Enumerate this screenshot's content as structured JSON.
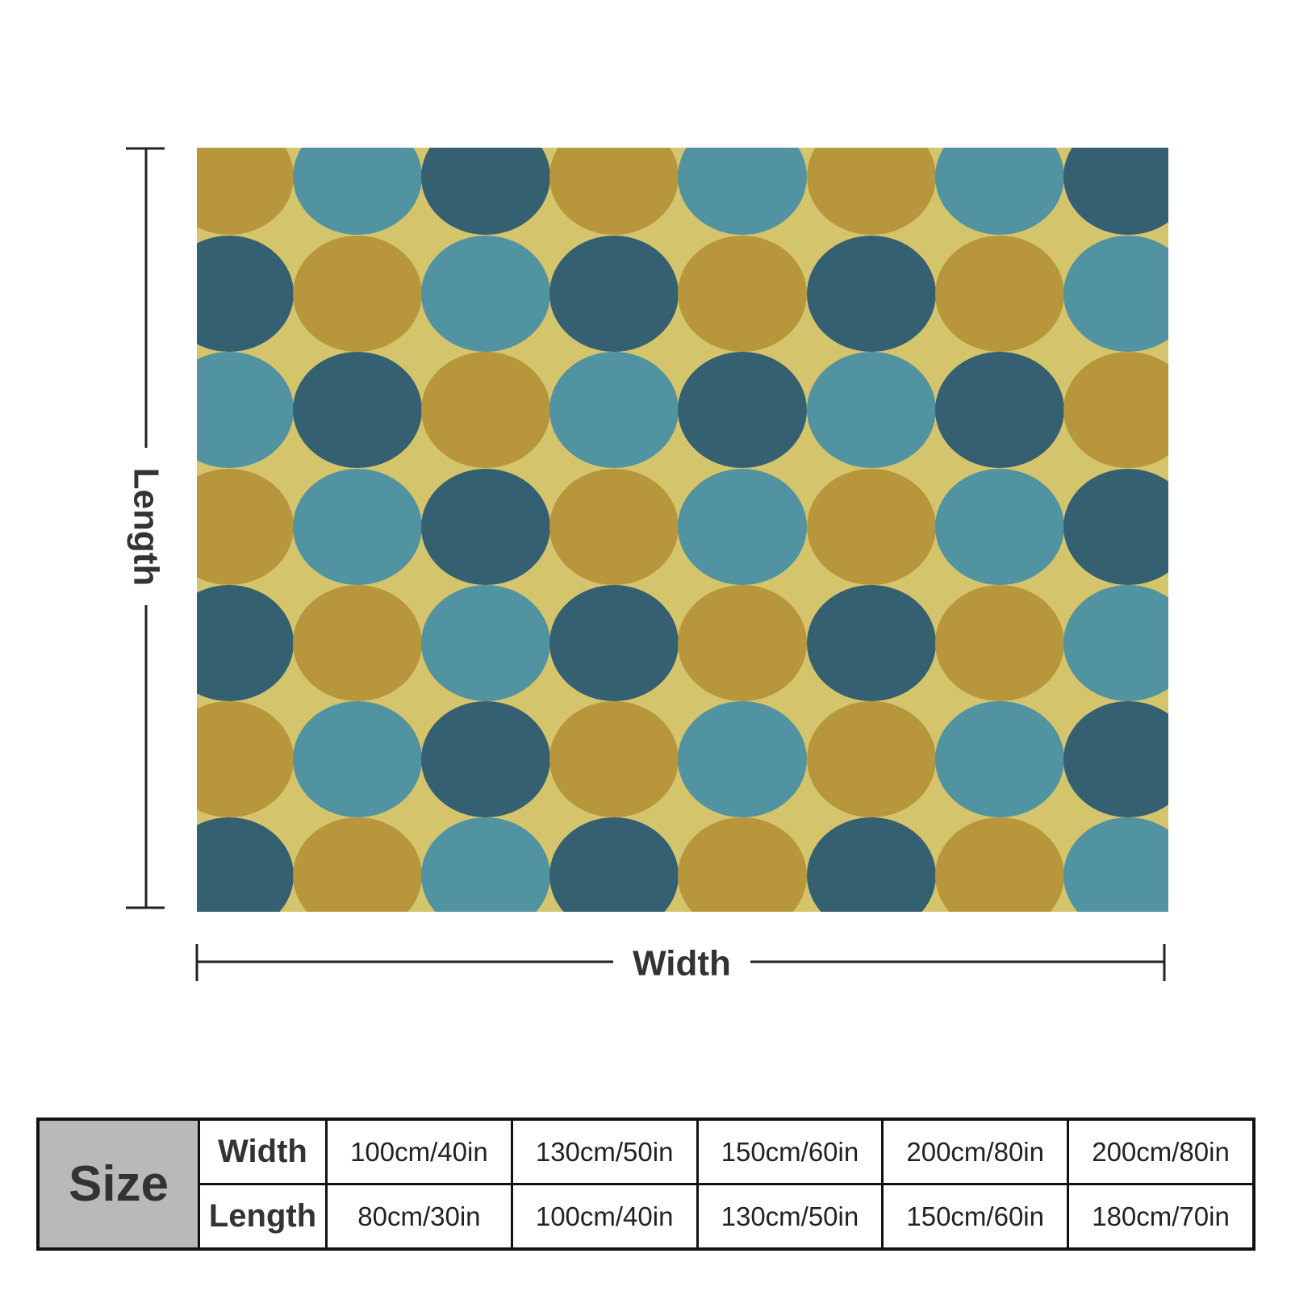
{
  "dimension_labels": {
    "length": "Length",
    "width": "Width"
  },
  "size_table": {
    "header": "Size",
    "rows": [
      {
        "label": "Width",
        "values": [
          "100cm/40in",
          "130cm/50in",
          "150cm/60in",
          "200cm/80in",
          "200cm/80in"
        ]
      },
      {
        "label": "Length",
        "values": [
          "80cm/30in",
          "100cm/40in",
          "130cm/50in",
          "150cm/60in",
          "180cm/70in"
        ]
      }
    ]
  }
}
